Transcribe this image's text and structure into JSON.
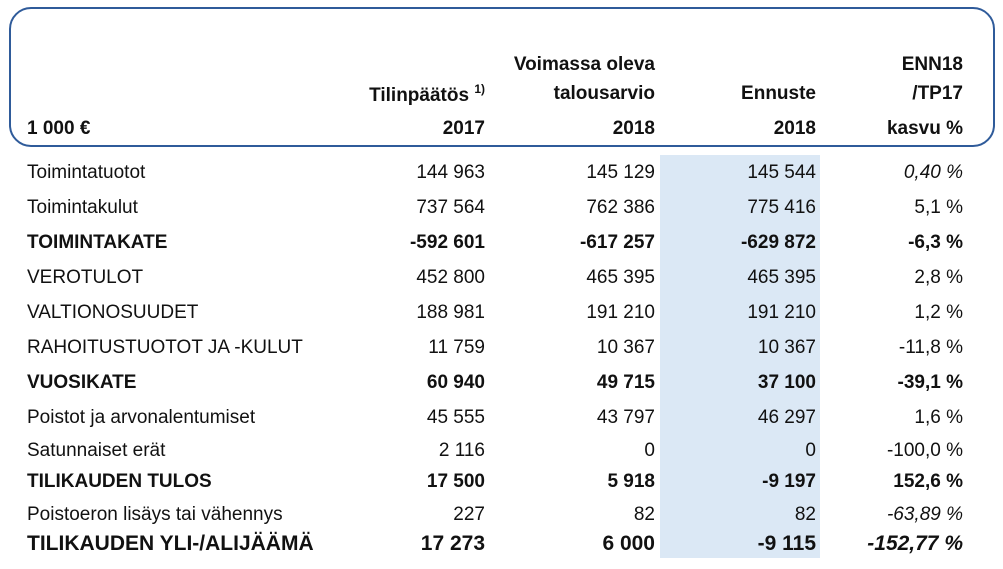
{
  "header": {
    "unit": "1 000 €",
    "col1": {
      "line1": "Tilinpäätös",
      "footnote": "1)",
      "year": "2017"
    },
    "col2": {
      "line1": "Voimassa oleva",
      "line2": "talousarvio",
      "year": "2018"
    },
    "col3": {
      "line1": "Ennuste",
      "year": "2018"
    },
    "col4": {
      "line1": "ENN18",
      "line2": "/TP17",
      "line3": "kasvu %"
    }
  },
  "rows": [
    {
      "label": "Toimintatuotot",
      "v2017": "144 963",
      "v2018": "145 129",
      "enn": "145 544",
      "kasvu": "0,40 %"
    },
    {
      "label": "Toimintakulut",
      "v2017": "737 564",
      "v2018": "762 386",
      "enn": "775 416",
      "kasvu": "5,1 %"
    },
    {
      "label": "TOIMINTAKATE",
      "v2017": "-592 601",
      "v2018": "-617 257",
      "enn": "-629 872",
      "kasvu": "-6,3 %"
    },
    {
      "label": "VEROTULOT",
      "v2017": "452 800",
      "v2018": "465 395",
      "enn": "465 395",
      "kasvu": "2,8 %"
    },
    {
      "label": "VALTIONOSUUDET",
      "v2017": "188 981",
      "v2018": "191 210",
      "enn": "191 210",
      "kasvu": "1,2 %"
    },
    {
      "label": "RAHOITUSTUOTOT JA -KULUT",
      "v2017": "11 759",
      "v2018": "10 367",
      "enn": "10 367",
      "kasvu": "-11,8 %"
    },
    {
      "label": "VUOSIKATE",
      "v2017": "60 940",
      "v2018": "49 715",
      "enn": "37 100",
      "kasvu": "-39,1 %"
    },
    {
      "label": "Poistot ja arvonalentumiset",
      "v2017": "45 555",
      "v2018": "43 797",
      "enn": "46 297",
      "kasvu": "1,6 %"
    },
    {
      "label": "Satunnaiset erät",
      "v2017": "2 116",
      "v2018": "0",
      "enn": "0",
      "kasvu": "-100,0 %"
    },
    {
      "label": "TILIKAUDEN TULOS",
      "v2017": "17 500",
      "v2018": "5 918",
      "enn": "-9 197",
      "kasvu": "152,6 %"
    },
    {
      "label": "Poistoeron lisäys tai vähennys",
      "v2017": "227",
      "v2018": "82",
      "enn": "82",
      "kasvu": "-63,89 %"
    },
    {
      "label": "TILIKAUDEN YLI-/ALIJÄÄMÄ",
      "v2017": "17 273",
      "v2018": "6 000",
      "enn": "-9 115",
      "kasvu": "-152,77 %"
    }
  ]
}
